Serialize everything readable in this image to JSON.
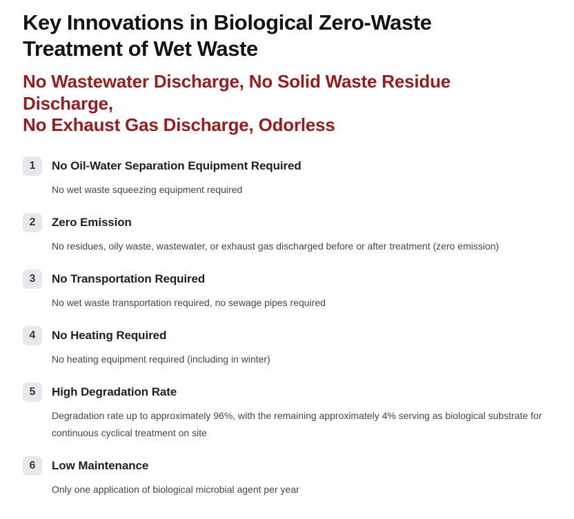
{
  "header": {
    "title_lines": [
      "Key Innovations in Biological Zero-Waste",
      "Treatment of Wet Waste"
    ],
    "subtitle_lines": [
      "No Wastewater Discharge, No Solid Waste Residue Discharge,",
      "No Exhaust Gas Discharge, Odorless"
    ]
  },
  "innovations": [
    {
      "number": "1",
      "title": "No Oil-Water Separation Equipment Required",
      "description": "No wet waste squeezing equipment required"
    },
    {
      "number": "2",
      "title": "Zero Emission",
      "description": "No residues, oily waste, wastewater, or exhaust gas discharged before or after treatment (zero emission)"
    },
    {
      "number": "3",
      "title": "No Transportation Required",
      "description": "No wet waste transportation required, no sewage pipes required"
    },
    {
      "number": "4",
      "title": "No Heating Required",
      "description": "No heating equipment required (including in winter)"
    },
    {
      "number": "5",
      "title": "High Degradation Rate",
      "description": "Degradation rate up to approximately 96%, with the remaining approximately 4% serving as biological substrate for continuous cyclical treatment on site"
    },
    {
      "number": "6",
      "title": "Low Maintenance",
      "description": "Only one application of biological microbial agent per year"
    }
  ],
  "colors": {
    "accent_red": "#9A1B1B",
    "badge_bg": "#E7E7EC",
    "heading_color": "#141417",
    "title_color": "#1E1E23",
    "desc_color": "#45454C",
    "badge_number_color": "#38383F"
  }
}
